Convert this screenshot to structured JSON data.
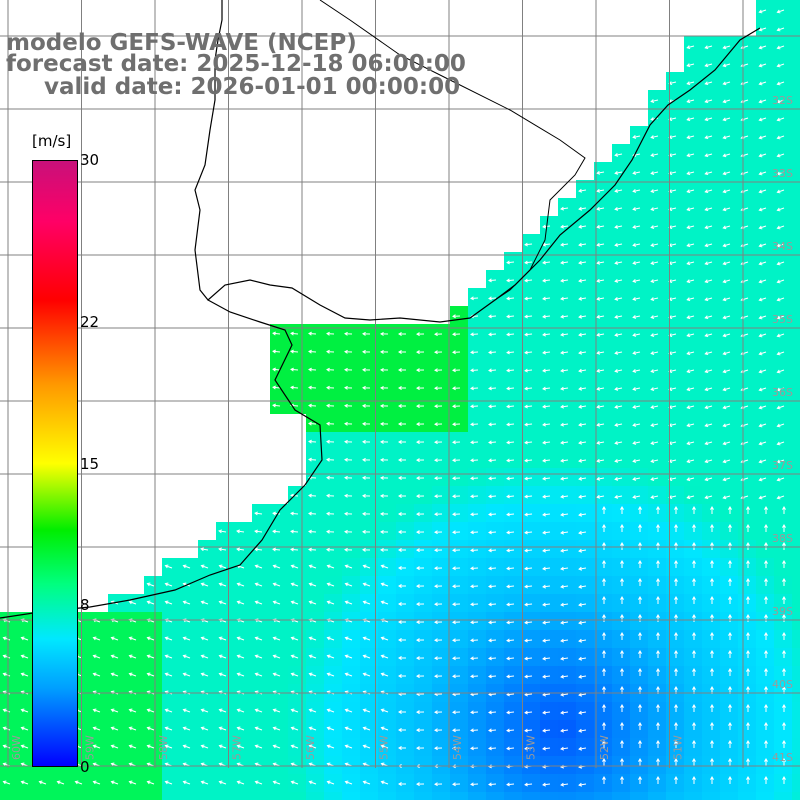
{
  "title": {
    "line1": "modelo GEFS-WAVE (NCEP)",
    "line2": "forecast date: 2025-12-18 06:00:00",
    "line3": "valid date: 2026-01-01 00:00:00"
  },
  "colorbar": {
    "units": "[m/s]",
    "ticks": [
      {
        "label": "30",
        "value": 30
      },
      {
        "label": "22",
        "value": 22
      },
      {
        "label": "15",
        "value": 15
      },
      {
        "label": "8",
        "value": 8
      },
      {
        "label": "0",
        "value": 0
      }
    ],
    "colors": [
      "#0000ff",
      "#00a0ff",
      "#00e8ff",
      "#00ff80",
      "#00ee00",
      "#ffff00",
      "#ff9900",
      "#ff0000",
      "#ff0066",
      "#c8107a"
    ]
  },
  "map": {
    "lat_labels": [
      "32S",
      "33S",
      "34S",
      "35S",
      "36S",
      "37S",
      "38S",
      "39S",
      "40S",
      "41S"
    ],
    "lon_labels": [
      "60W",
      "59W",
      "58W",
      "57W",
      "56W",
      "55W",
      "54W",
      "53W",
      "52W",
      "51W"
    ],
    "wind_field_note": "wind speed shading with white direction arrows"
  }
}
